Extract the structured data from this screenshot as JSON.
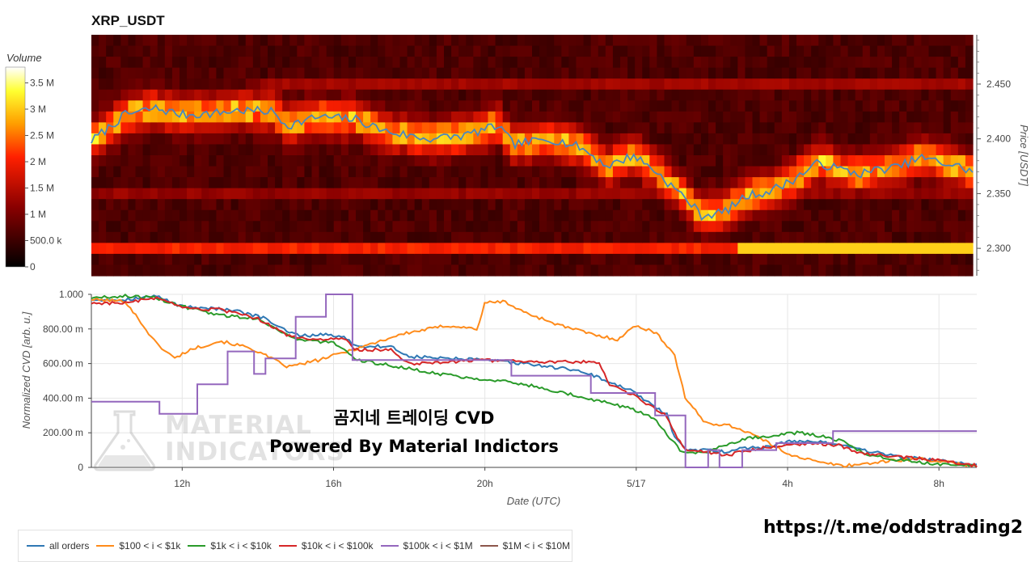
{
  "page": {
    "title": "XRP_USDT"
  },
  "heatmap": {
    "colorbar_title": "Volume",
    "colorbar_ticks": [
      "0",
      "500.0 k",
      "1 M",
      "1.5 M",
      "2 M",
      "2.5 M",
      "3 M",
      "3.5 M"
    ],
    "colorbar_values": [
      0,
      500000,
      1000000,
      1500000,
      2000000,
      2500000,
      3000000,
      3500000
    ],
    "vmax": 3800000,
    "price_axis_title": "Price [USDT]",
    "price_ticks": [
      "2.300",
      "2.350",
      "2.400",
      "2.450"
    ],
    "price_tick_values": [
      2.3,
      2.35,
      2.4,
      2.45
    ],
    "price_range": [
      2.275,
      2.495
    ],
    "colors": {
      "low": "#000000",
      "mid": "#c00000",
      "high": "#ffff40",
      "top": "#ffffff",
      "price_line": "#4a86c0"
    }
  },
  "watermark": {
    "line1": "MATERIAL",
    "line2": "INDICATORS"
  },
  "overlay_text": {
    "line1": "곰지네 트레이딩 CVD",
    "line2": "Powered By Material Indictors"
  },
  "link_text": "https://t.me/oddstrading2",
  "chart_data": [
    {
      "type": "heatmap",
      "title": "XRP_USDT",
      "ylabel": "Price [USDT]",
      "ylim": [
        2.275,
        2.495
      ],
      "x_time_range_hours": [
        9.6,
        33.0
      ],
      "colorbar": "Volume",
      "price_series": {
        "name": "price",
        "x_hours": [
          9.6,
          10.5,
          11.3,
          12.0,
          12.8,
          13.5,
          14.4,
          14.8,
          15.6,
          16.6,
          17.4,
          18.5,
          19.5,
          20.4,
          20.8,
          21.8,
          22.6,
          23.3,
          24.0,
          24.6,
          25.0,
          25.4,
          25.8,
          26.4,
          27.0,
          27.6,
          28.2,
          28.9,
          29.5,
          30.0,
          30.5,
          31.0,
          31.6,
          32.2,
          32.6,
          33.0
        ],
        "y": [
          2.398,
          2.422,
          2.428,
          2.422,
          2.423,
          2.426,
          2.425,
          2.412,
          2.42,
          2.418,
          2.407,
          2.4,
          2.403,
          2.412,
          2.395,
          2.4,
          2.392,
          2.375,
          2.385,
          2.37,
          2.357,
          2.345,
          2.33,
          2.333,
          2.348,
          2.352,
          2.362,
          2.378,
          2.372,
          2.368,
          2.372,
          2.374,
          2.383,
          2.378,
          2.375,
          2.37
        ]
      }
    },
    {
      "type": "line",
      "xlabel": "Date (UTC)",
      "ylabel": "Normalized CVD [arb. u.]",
      "ylim": [
        0,
        1.0
      ],
      "xlim_hours": [
        9.6,
        33.0
      ],
      "x_ticks": [
        "12h",
        "16h",
        "20h",
        "5/17",
        "4h",
        "8h"
      ],
      "x_tick_values": [
        12,
        16,
        20,
        24,
        28,
        32
      ],
      "y_ticks": [
        "0",
        "200.00 m",
        "400.00 m",
        "600.00 m",
        "800.00 m",
        "1.000"
      ],
      "y_tick_values": [
        0,
        0.2,
        0.4,
        0.6,
        0.8,
        1.0
      ],
      "grid": true,
      "legend_position": "bottom",
      "series": [
        {
          "name": "all orders",
          "color": "#2f78b4",
          "x": [
            9.6,
            10.5,
            11.3,
            12.0,
            12.8,
            13.5,
            14.2,
            14.8,
            15.2,
            15.8,
            16.3,
            16.6,
            17.5,
            18.0,
            19.0,
            20.0,
            21.0,
            22.5,
            23.0,
            23.3,
            24.0,
            24.4,
            24.8,
            25.0,
            25.3,
            25.8,
            26.4,
            26.8,
            27.5,
            28.0,
            28.6,
            29.2,
            30.0,
            31.0,
            32.0,
            32.5,
            33.0
          ],
          "y": [
            0.97,
            0.97,
            0.99,
            0.93,
            0.92,
            0.9,
            0.86,
            0.78,
            0.76,
            0.77,
            0.75,
            0.7,
            0.7,
            0.64,
            0.63,
            0.62,
            0.6,
            0.56,
            0.52,
            0.49,
            0.43,
            0.36,
            0.31,
            0.18,
            0.1,
            0.1,
            0.09,
            0.11,
            0.12,
            0.15,
            0.15,
            0.14,
            0.1,
            0.06,
            0.04,
            0.03,
            0.02
          ]
        },
        {
          "name": "$100 < i < $1k",
          "color": "#ff8b1a",
          "x": [
            9.6,
            10.5,
            11.3,
            11.8,
            12.2,
            13.0,
            13.8,
            14.8,
            15.6,
            16.8,
            17.8,
            19.0,
            19.8,
            20.0,
            20.5,
            21.0,
            22.0,
            23.0,
            23.5,
            24.0,
            24.5,
            25.0,
            25.3,
            25.8,
            26.5,
            27.0,
            28.0,
            28.8,
            29.5,
            30.0,
            30.8,
            31.5,
            32.5,
            33.0
          ],
          "y": [
            0.97,
            0.96,
            0.72,
            0.63,
            0.68,
            0.73,
            0.69,
            0.58,
            0.62,
            0.7,
            0.77,
            0.82,
            0.8,
            0.95,
            0.96,
            0.9,
            0.82,
            0.76,
            0.74,
            0.82,
            0.78,
            0.66,
            0.4,
            0.26,
            0.24,
            0.2,
            0.08,
            0.03,
            0.01,
            0.02,
            0.04,
            0.05,
            0.02,
            0.01
          ]
        },
        {
          "name": "$1k < i < $10k",
          "color": "#2a9b2a",
          "x": [
            9.6,
            10.5,
            11.3,
            12.0,
            13.0,
            14.0,
            15.0,
            16.0,
            16.6,
            17.5,
            18.5,
            19.5,
            20.5,
            21.5,
            22.5,
            23.3,
            24.0,
            24.5,
            24.9,
            25.2,
            25.8,
            26.5,
            27.0,
            27.8,
            28.3,
            28.9,
            29.5,
            30.0,
            31.0,
            32.0,
            33.0
          ],
          "y": [
            0.98,
            0.99,
            0.98,
            0.93,
            0.88,
            0.86,
            0.74,
            0.72,
            0.62,
            0.59,
            0.55,
            0.52,
            0.5,
            0.46,
            0.41,
            0.37,
            0.33,
            0.28,
            0.17,
            0.09,
            0.08,
            0.14,
            0.17,
            0.19,
            0.2,
            0.18,
            0.15,
            0.08,
            0.04,
            0.02,
            0.01
          ]
        },
        {
          "name": "$10k < i < $100k",
          "color": "#d62728",
          "x": [
            9.6,
            10.5,
            11.3,
            12.0,
            13.0,
            14.0,
            14.8,
            15.5,
            16.3,
            16.6,
            17.5,
            18.0,
            19.0,
            20.0,
            21.0,
            22.0,
            23.0,
            23.3,
            24.0,
            24.4,
            24.8,
            25.0,
            25.3,
            25.8,
            26.4,
            27.0,
            27.5,
            28.0,
            28.6,
            29.3,
            30.0,
            31.0,
            32.0,
            33.0
          ],
          "y": [
            0.95,
            0.95,
            0.98,
            0.92,
            0.91,
            0.86,
            0.76,
            0.74,
            0.74,
            0.68,
            0.68,
            0.6,
            0.61,
            0.62,
            0.61,
            0.61,
            0.61,
            0.48,
            0.41,
            0.35,
            0.3,
            0.2,
            0.1,
            0.09,
            0.07,
            0.1,
            0.12,
            0.13,
            0.14,
            0.13,
            0.08,
            0.06,
            0.04,
            0.01
          ]
        },
        {
          "name": "$100k < i < $1M",
          "color": "#9467bd",
          "x": [
            9.6,
            11.4,
            11.4,
            12.4,
            12.4,
            13.2,
            13.2,
            13.9,
            13.9,
            14.2,
            14.2,
            15.0,
            15.0,
            15.8,
            15.8,
            16.5,
            16.5,
            20.7,
            20.7,
            22.8,
            22.8,
            24.5,
            24.5,
            25.3,
            25.3,
            25.9,
            25.9,
            26.2,
            26.2,
            26.8,
            26.8,
            27.7,
            27.7,
            29.2,
            29.2,
            33.0
          ],
          "y": [
            0.38,
            0.38,
            0.31,
            0.31,
            0.48,
            0.48,
            0.67,
            0.67,
            0.54,
            0.54,
            0.63,
            0.63,
            0.87,
            0.87,
            1.0,
            1.0,
            0.62,
            0.62,
            0.53,
            0.53,
            0.43,
            0.43,
            0.3,
            0.3,
            0.0,
            0.0,
            0.1,
            0.1,
            0.0,
            0.0,
            0.1,
            0.1,
            0.14,
            0.14,
            0.21,
            0.21
          ]
        },
        {
          "name": "$1M < i < $10M",
          "color": "#8c564b",
          "x": [
            9.6,
            33.0
          ],
          "y": [
            null,
            null
          ]
        }
      ]
    }
  ]
}
